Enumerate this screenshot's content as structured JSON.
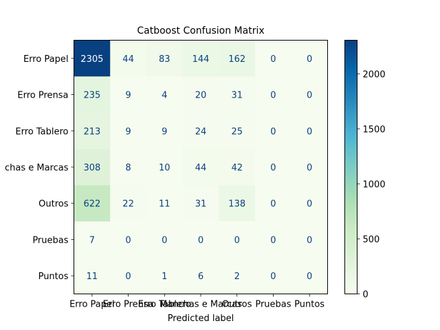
{
  "chart_data": {
    "type": "heatmap",
    "title": "Catboost Confusion Matrix",
    "xlabel": "Predicted label",
    "ylabel": "",
    "labels": [
      "Erro Papel",
      "Erro Prensa",
      "Erro Tablero",
      "Manchas e Marcas",
      "Outros",
      "Pruebas",
      "Puntos"
    ],
    "y_tick_labels_visible": [
      "Erro Papel",
      "Erro Prensa",
      "Erro Tablero",
      "chas e Marcas",
      "Outros",
      "Pruebas",
      "Puntos"
    ],
    "matrix": [
      [
        2305,
        44,
        83,
        144,
        162,
        0,
        0
      ],
      [
        235,
        9,
        4,
        20,
        31,
        0,
        0
      ],
      [
        213,
        9,
        9,
        24,
        25,
        0,
        0
      ],
      [
        308,
        8,
        10,
        44,
        42,
        0,
        0
      ],
      [
        622,
        22,
        11,
        31,
        138,
        0,
        0
      ],
      [
        7,
        0,
        0,
        0,
        0,
        0,
        0
      ],
      [
        11,
        0,
        1,
        6,
        2,
        0,
        0
      ]
    ],
    "colormap": "GnBu",
    "vmin": 0,
    "vmax": 2305,
    "colorbar_ticks": [
      0,
      500,
      1000,
      1500,
      2000
    ],
    "text_color_light": "#ffffff",
    "text_color_dark": "#084081"
  }
}
